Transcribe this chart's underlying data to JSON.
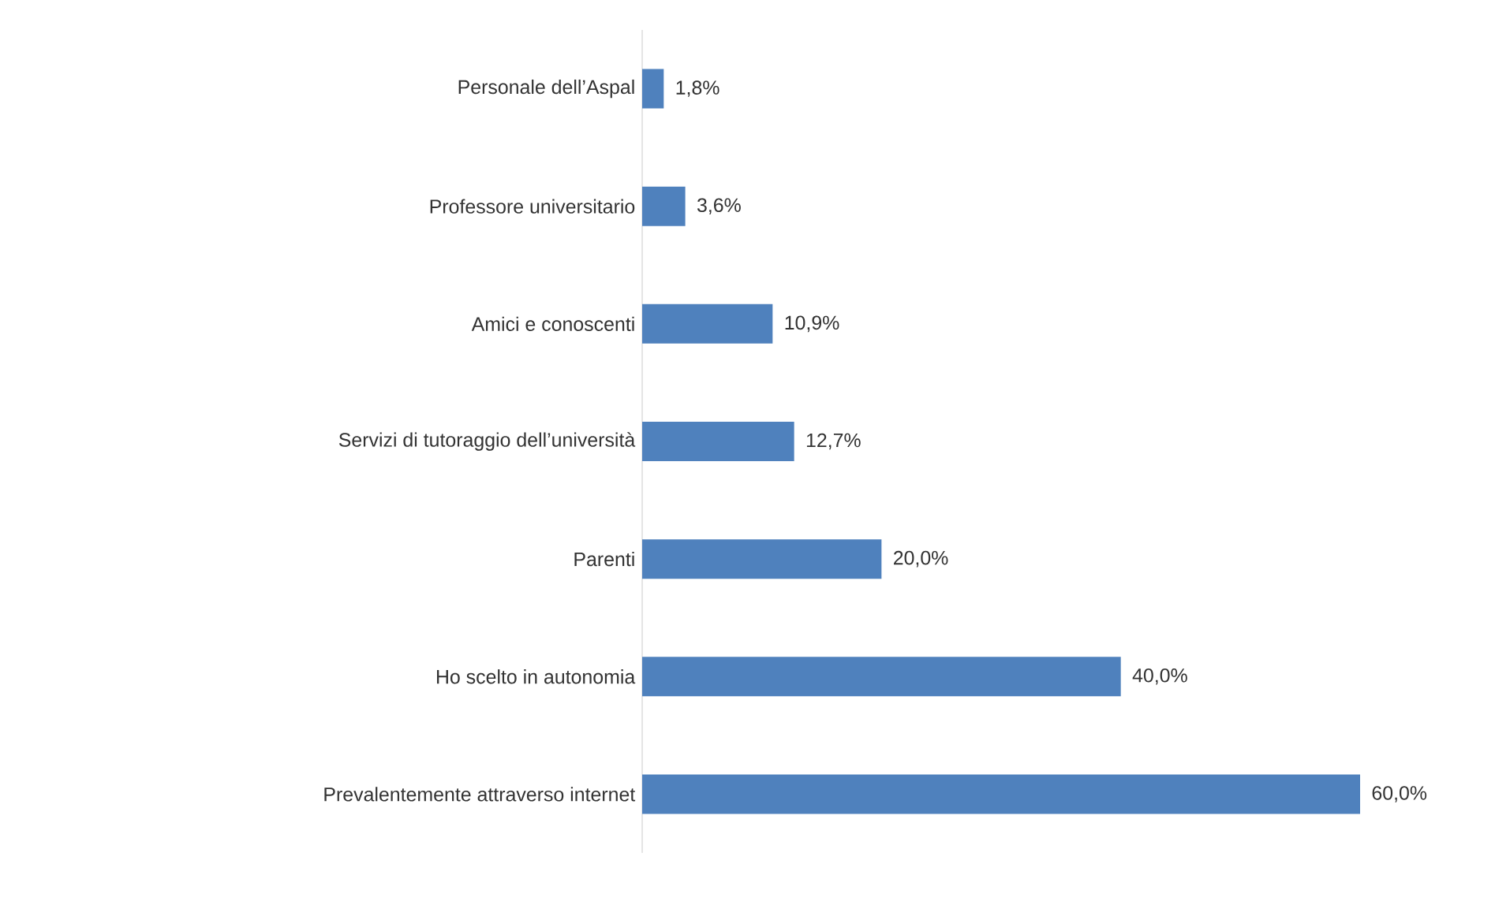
{
  "chart_data": {
    "type": "bar",
    "orientation": "horizontal",
    "color": "#4f81bd",
    "categories": [
      "Personale dell’Aspal",
      "Professore universitario",
      "Amici e conoscenti",
      "Servizi di tutoraggio dell’università",
      "Parenti",
      "Ho scelto in autonomia",
      "Prevalentemente attraverso internet"
    ],
    "values": [
      1.8,
      3.6,
      10.9,
      12.7,
      20.0,
      40.0,
      60.0
    ],
    "value_labels": [
      "1,8%",
      "3,6%",
      "10,9%",
      "12,7%",
      "20,0%",
      "40,0%",
      "60,0%"
    ],
    "tick_labels": "y"
  }
}
